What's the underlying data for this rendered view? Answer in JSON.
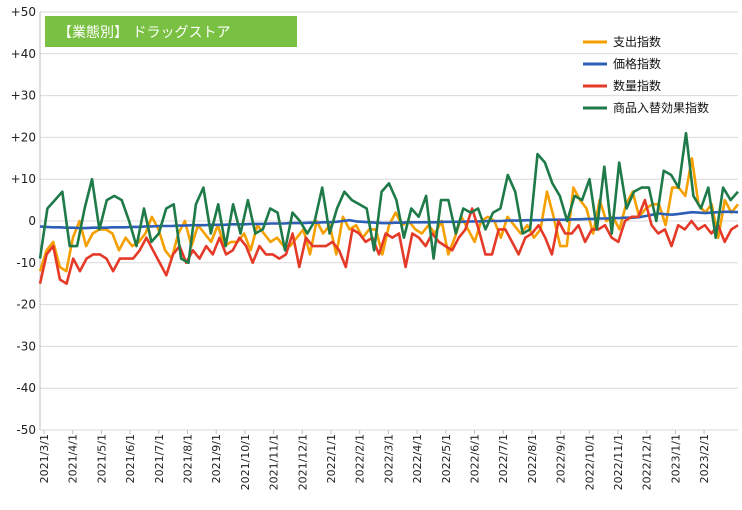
{
  "chart_data": {
    "type": "line",
    "title": "【業態別】 ドラッグストア",
    "title_bg": "#7ac143",
    "ylim": [
      -50,
      50
    ],
    "y_ticks": [
      50,
      40,
      30,
      20,
      10,
      0,
      -10,
      -20,
      -30,
      -40,
      -50
    ],
    "y_tick_labels": [
      "+50",
      "+40",
      "+30",
      "+20",
      "+10",
      "0",
      "-10",
      "-20",
      "-30",
      "-40",
      "-50"
    ],
    "x_tick_labels": [
      "2021/3/1",
      "2021/4/1",
      "2021/5/1",
      "2021/6/1",
      "2021/7/1",
      "2021/8/1",
      "2021/9/1",
      "2021/10/1",
      "2021/11/1",
      "2021/12/1",
      "2022/1/1",
      "2022/2/1",
      "2022/3/1",
      "2022/4/1",
      "2022/5/1",
      "2022/6/1",
      "2022/7/1",
      "2022/8/1",
      "2022/9/1",
      "2022/10/1",
      "2022/11/1",
      "2022/12/1",
      "2023/1/1",
      "2023/2/1"
    ],
    "grid": true,
    "legend_position": "top-right",
    "series": [
      {
        "name": "支出指数",
        "color": "#f5a000",
        "values": [
          -12,
          -7,
          -5,
          -11,
          -12,
          -4,
          0,
          -6,
          -3,
          -2,
          -2,
          -3,
          -7,
          -4,
          -6,
          -5,
          -3,
          1,
          -2,
          -7,
          -9,
          -3,
          0,
          -6,
          -1,
          -3,
          -5,
          -1,
          -6,
          -5,
          -5,
          -3,
          -7,
          -1,
          -3,
          -5,
          -4,
          -6,
          -6,
          -4,
          -2,
          -8,
          0,
          -3,
          -1,
          -8,
          1,
          -2,
          -1,
          -4,
          -2,
          -2,
          -8,
          -1,
          2,
          -1,
          0,
          -2,
          -3,
          -1,
          -3,
          0,
          -8,
          -4,
          1,
          -2,
          -5,
          0,
          1,
          0,
          -4,
          1,
          -1,
          -3,
          -1,
          -4,
          -2,
          7,
          1,
          -6,
          -6,
          8,
          5,
          3,
          -3,
          5,
          0,
          1,
          -2,
          4,
          7,
          1,
          3,
          4,
          4,
          -1,
          8,
          8,
          6,
          15,
          4,
          2,
          4,
          -4,
          5,
          2,
          4
        ]
      },
      {
        "name": "価格指数",
        "color": "#2e5fb7",
        "values": [
          -1.3,
          -1.4,
          -1.5,
          -1.5,
          -1.6,
          -1.6,
          -1.7,
          -1.7,
          -1.6,
          -1.6,
          -1.6,
          -1.5,
          -1.5,
          -1.5,
          -1.4,
          -1.4,
          -1.3,
          -1.3,
          -1.2,
          -1.2,
          -1.2,
          -1.1,
          -1.1,
          -1.0,
          -1.0,
          -1.0,
          -0.9,
          -0.9,
          -0.9,
          -0.8,
          -0.8,
          -0.8,
          -0.7,
          -0.7,
          -0.7,
          -0.6,
          -0.6,
          -0.6,
          -0.5,
          -0.5,
          -0.5,
          -0.4,
          -0.4,
          -0.3,
          -0.3,
          -0.2,
          0.0,
          0.2,
          -0.1,
          -0.2,
          -0.3,
          -0.4,
          -0.5,
          -0.5,
          -0.4,
          -0.4,
          -0.3,
          -0.3,
          -0.3,
          -0.3,
          -0.3,
          -0.2,
          -0.2,
          -0.2,
          -0.2,
          -0.1,
          -0.1,
          -0.1,
          0.0,
          0.0,
          0.0,
          0.1,
          0.1,
          0.1,
          0.2,
          0.2,
          0.2,
          0.3,
          0.3,
          0.3,
          0.3,
          0.4,
          0.4,
          0.5,
          0.5,
          0.6,
          0.6,
          0.7,
          0.7,
          0.8,
          0.8,
          0.9,
          1.2,
          1.5,
          1.8,
          1.6,
          1.5,
          1.7,
          1.9,
          2.1,
          2.0,
          1.9,
          2.0,
          2.1,
          2.2,
          2.2,
          2.1
        ]
      },
      {
        "name": "数量指数",
        "color": "#e53a28",
        "values": [
          -15,
          -8,
          -6,
          -14,
          -15,
          -9,
          -12,
          -9,
          -8,
          -8,
          -9,
          -12,
          -9,
          -9,
          -9,
          -7,
          -4,
          -7,
          -10,
          -13,
          -8,
          -6,
          -10,
          -7,
          -9,
          -6,
          -8,
          -4,
          -8,
          -7,
          -4,
          -6,
          -10,
          -6,
          -8,
          -8,
          -9,
          -8,
          -3,
          -11,
          -4,
          -6,
          -6,
          -6,
          -5,
          -7,
          -11,
          -2,
          -3,
          -5,
          -4,
          -8,
          -3,
          -4,
          -3,
          -11,
          -3,
          -4,
          -6,
          -3,
          -5,
          -6,
          -7,
          -4,
          -2,
          3,
          -2,
          -8,
          -8,
          -2,
          -2,
          -5,
          -8,
          -4,
          -3,
          -1,
          -4,
          -8,
          0,
          -3,
          -3,
          -1,
          -5,
          -2,
          -2,
          -1,
          -4,
          -5,
          0,
          1,
          1,
          5,
          -1,
          -3,
          -2,
          -6,
          -1,
          -2,
          0,
          -2,
          -1,
          -3,
          -1,
          -5,
          -2,
          -1
        ]
      },
      {
        "name": "商品入替効果指数",
        "color": "#1e7a48",
        "values": [
          -9,
          3,
          5,
          7,
          -6,
          -6,
          3,
          10,
          -2,
          5,
          6,
          5,
          0,
          -6,
          3,
          -5,
          -3,
          3,
          4,
          -9,
          -10,
          4,
          8,
          -3,
          4,
          -6,
          4,
          -3,
          5,
          -3,
          -2,
          3,
          2,
          -7,
          2,
          0,
          -3,
          0,
          8,
          -3,
          3,
          7,
          5,
          4,
          3,
          -7,
          7,
          9,
          5,
          -4,
          3,
          1,
          6,
          -9,
          5,
          5,
          -3,
          3,
          2,
          3,
          -2,
          2,
          3,
          11,
          7,
          -3,
          -2,
          16,
          14,
          9,
          6,
          0,
          6,
          5,
          10,
          -2,
          13,
          -3,
          14,
          3,
          7,
          8,
          8,
          0,
          12,
          11,
          8,
          21,
          6,
          3,
          8,
          -4,
          8,
          5,
          7
        ]
      }
    ]
  }
}
